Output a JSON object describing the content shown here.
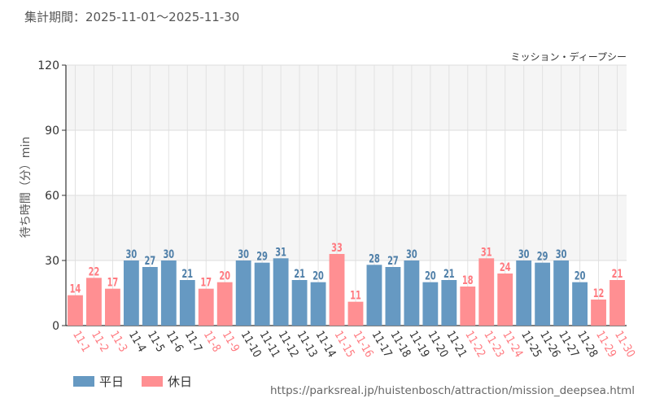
{
  "header": {
    "period": "集計期間：2025-11-01～2025-11-30"
  },
  "footer": {
    "source_url": "https://parksreal.jp/huistenbosch/attraction/mission_deepsea.html"
  },
  "legend": {
    "items": [
      {
        "label": "平日",
        "color": "#6699c2"
      },
      {
        "label": "休日",
        "color": "#ff8f92"
      }
    ]
  },
  "colors": {
    "weekday": "#6699c2",
    "weekday_label": "#4f7fa8",
    "holiday": "#ff8f92",
    "holiday_label": "#ff7a80",
    "weekday_tick": "#333333",
    "holiday_tick": "#ff7a80"
  },
  "chart_data": {
    "type": "bar",
    "title": "ミッション・ディープシー",
    "xlabel": "",
    "ylabel": "待ち時間（分）min",
    "ylim": [
      0,
      120
    ],
    "yticks": [
      0,
      30,
      60,
      90,
      120
    ],
    "grid": true,
    "categories": [
      "11-1",
      "11-2",
      "11-3",
      "11-4",
      "11-5",
      "11-6",
      "11-7",
      "11-8",
      "11-9",
      "11-10",
      "11-11",
      "11-12",
      "11-13",
      "11-14",
      "11-15",
      "11-16",
      "11-17",
      "11-18",
      "11-19",
      "11-20",
      "11-21",
      "11-22",
      "11-23",
      "11-24",
      "11-25",
      "11-26",
      "11-27",
      "11-28",
      "11-29",
      "11-30"
    ],
    "values": [
      14,
      22,
      17,
      30,
      27,
      30,
      21,
      17,
      20,
      30,
      29,
      31,
      21,
      20,
      33,
      11,
      28,
      27,
      30,
      20,
      21,
      18,
      31,
      24,
      30,
      29,
      30,
      20,
      12,
      21
    ],
    "day_type": [
      "休日",
      "休日",
      "休日",
      "平日",
      "平日",
      "平日",
      "平日",
      "休日",
      "休日",
      "平日",
      "平日",
      "平日",
      "平日",
      "平日",
      "休日",
      "休日",
      "平日",
      "平日",
      "平日",
      "平日",
      "平日",
      "休日",
      "休日",
      "休日",
      "平日",
      "平日",
      "平日",
      "平日",
      "休日",
      "休日"
    ]
  }
}
